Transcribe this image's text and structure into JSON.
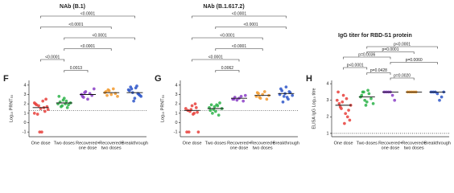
{
  "chart_data": [
    {
      "type": "strip",
      "panel": "F",
      "title": "NAb (B.1)",
      "ylabel": "Log₁₀ PRNT₅₀",
      "categories": [
        [
          "One dose"
        ],
        [
          "Two doses"
        ],
        [
          "Recovered+",
          "one dose"
        ],
        [
          "Recovered+",
          "two doses"
        ],
        [
          "Breakthrough"
        ]
      ],
      "colors": [
        "#e8413c",
        "#2db34a",
        "#8b3fc7",
        "#f29a2e",
        "#2f57c9"
      ],
      "values": [
        [
          2.1,
          1.9,
          1.8,
          1.5,
          2.3,
          1.2,
          1.7,
          2.0,
          0.9,
          -1,
          -1,
          1.6,
          2.5,
          1.4,
          1.0
        ],
        [
          2.0,
          2.2,
          1.8,
          2.6,
          2.3,
          1.9,
          2.1,
          2.8,
          1.7,
          2.4,
          2.0,
          1.6
        ],
        [
          3.0,
          2.7,
          3.3,
          2.5,
          3.1,
          2.9,
          3.6,
          2.8,
          3.2
        ],
        [
          3.2,
          2.9,
          3.4,
          3.0,
          3.6,
          3.1,
          2.8,
          3.3,
          3.5
        ],
        [
          3.5,
          3.8,
          3.2,
          2.6,
          3.9,
          3.0,
          2.8,
          3.4,
          3.6,
          2.3,
          3.7,
          3.1,
          2.9
        ]
      ],
      "means": [
        1.6,
        2.1,
        3.0,
        3.2,
        3.2
      ],
      "threshold": 1.3,
      "ylim": [
        -1.5,
        4.5
      ],
      "yticks": [
        -1,
        0,
        1,
        2,
        3,
        4
      ],
      "comparisons": [
        {
          "pair": [
            0,
            4
          ],
          "label": "<0.0001"
        },
        {
          "pair": [
            0,
            3
          ],
          "label": "<0.0001"
        },
        {
          "pair": [
            1,
            4
          ],
          "label": "<0.0001"
        },
        {
          "pair": [
            1,
            3
          ],
          "label": "<0.0001"
        },
        {
          "pair": [
            0,
            1
          ],
          "label": "<0.0001"
        },
        {
          "pair": [
            1,
            2
          ],
          "label": "0.0013"
        }
      ]
    },
    {
      "type": "strip",
      "panel": "G",
      "title": "NAb (B.1.617.2)",
      "ylabel": "Log₁₀ PRNT₅₀",
      "categories": [
        [
          "One dose"
        ],
        [
          "Two doses"
        ],
        [
          "Recovered+",
          "one dose"
        ],
        [
          "Recovered+",
          "two doses"
        ],
        [
          "Breakthrough"
        ]
      ],
      "colors": [
        "#e8413c",
        "#2db34a",
        "#8b3fc7",
        "#f29a2e",
        "#2f57c9"
      ],
      "values": [
        [
          1.5,
          1.3,
          1.2,
          1.8,
          1.0,
          1.6,
          -1,
          -1,
          -1,
          1.4,
          0.9,
          2.0,
          1.1
        ],
        [
          1.6,
          1.9,
          1.4,
          1.2,
          1.8,
          2.1,
          1.5,
          1.3,
          1.0,
          1.7,
          1.9,
          0.8
        ],
        [
          2.5,
          2.7,
          2.4,
          2.6,
          2.8,
          2.3,
          2.9,
          2.5
        ],
        [
          2.8,
          3.1,
          2.6,
          3.0,
          3.3,
          2.5,
          2.9,
          3.2,
          2.7
        ],
        [
          3.0,
          3.4,
          2.8,
          3.8,
          2.5,
          3.2,
          2.9,
          3.6,
          2.2,
          3.1,
          2.7,
          3.3
        ]
      ],
      "means": [
        1.3,
        1.5,
        2.6,
        2.9,
        3.1
      ],
      "threshold": 1.3,
      "ylim": [
        -1.5,
        4.5
      ],
      "yticks": [
        -1,
        0,
        1,
        2,
        3,
        4
      ],
      "comparisons": [
        {
          "pair": [
            0,
            4
          ],
          "label": "<0.0001"
        },
        {
          "pair": [
            1,
            4
          ],
          "label": "<0.0001"
        },
        {
          "pair": [
            0,
            3
          ],
          "label": "<0.0001"
        },
        {
          "pair": [
            1,
            3
          ],
          "label": "<0.0001"
        },
        {
          "pair": [
            0,
            2
          ],
          "label": "<0.0001"
        },
        {
          "pair": [
            1,
            2
          ],
          "label": "0.0062"
        }
      ]
    },
    {
      "type": "strip",
      "panel": "H",
      "title": "IgG titer for RBD-S1 protein",
      "ylabel": "ELISA IgG Log₁₀ titre",
      "categories": [
        [
          "One dose"
        ],
        [
          "Two doses"
        ],
        [
          "Recovered+",
          "one dose"
        ],
        [
          "Recovered+",
          "two doses"
        ],
        [
          "Breakthrough"
        ]
      ],
      "colors": [
        "#e8413c",
        "#2db34a",
        "#8b3fc7",
        "#f29a2e",
        "#2f57c9"
      ],
      "values": [
        [
          3.0,
          2.8,
          2.5,
          3.3,
          2.2,
          2.0,
          1.8,
          3.5,
          2.6,
          2.9,
          1.6,
          3.1,
          2.4,
          2.7
        ],
        [
          3.2,
          3.5,
          3.0,
          2.9,
          3.4,
          3.1,
          2.8,
          3.3,
          3.5,
          2.7,
          3.6
        ],
        [
          3.5,
          3.5,
          3.5,
          3.5,
          3.3,
          3.0
        ],
        [
          3.5,
          3.5,
          3.5,
          3.5,
          3.5
        ],
        [
          3.5,
          3.5,
          3.5,
          3.4,
          3.0,
          3.2,
          3.5
        ]
      ],
      "means": [
        2.7,
        3.2,
        3.5,
        3.5,
        3.5
      ],
      "threshold": 1,
      "ylim": [
        0.8,
        4.2
      ],
      "yticks": [
        1,
        2,
        3,
        4
      ],
      "comparisons": [
        {
          "pair": [
            1,
            4
          ],
          "label": "p<0.0001"
        },
        {
          "pair": [
            1,
            3
          ],
          "label": "p=0.0001"
        },
        {
          "pair": [
            0,
            2
          ],
          "label": "p=0.0036"
        },
        {
          "pair": [
            2,
            4
          ],
          "label": "p=0.0060"
        },
        {
          "pair": [
            0,
            1
          ],
          "label": "p<0.0001"
        },
        {
          "pair": [
            1,
            2
          ],
          "label": "p=0.0428"
        },
        {
          "pair": [
            2,
            3
          ],
          "label": "p=0.0020"
        }
      ]
    }
  ]
}
